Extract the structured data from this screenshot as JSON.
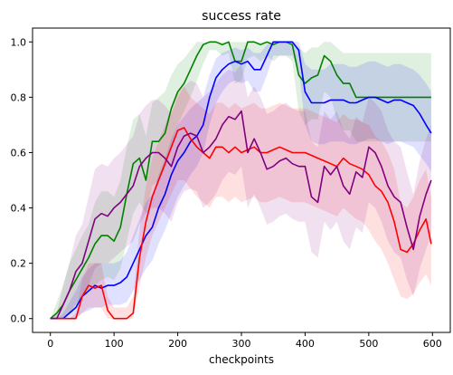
{
  "chart_data": {
    "type": "line",
    "title": "success rate",
    "xlabel": "checkpoints",
    "ylabel": "",
    "xlim": [
      -28,
      628
    ],
    "ylim": [
      -0.05,
      1.05
    ],
    "xticks": [
      0,
      100,
      200,
      300,
      400,
      500,
      600
    ],
    "yticks": [
      0.0,
      0.2,
      0.4,
      0.6,
      0.8,
      1.0
    ],
    "xtick_labels": [
      "0",
      "100",
      "200",
      "300",
      "400",
      "500",
      "600"
    ],
    "ytick_labels": [
      "0.0",
      "0.2",
      "0.4",
      "0.6",
      "0.8",
      "1.0"
    ],
    "grid": false,
    "series": [
      {
        "color": "#008000",
        "x": [
          0,
          10,
          20,
          30,
          40,
          50,
          60,
          70,
          80,
          90,
          100,
          110,
          120,
          130,
          140,
          150,
          160,
          170,
          180,
          190,
          200,
          210,
          220,
          230,
          240,
          250,
          260,
          270,
          280,
          290,
          300,
          310,
          320,
          330,
          340,
          350,
          360,
          370,
          380,
          390,
          400,
          410,
          420,
          430,
          440,
          450,
          460,
          470,
          480,
          490,
          500,
          510,
          520,
          530,
          540,
          550,
          560,
          570,
          580,
          590,
          598
        ],
        "y": [
          0.0,
          0.02,
          0.05,
          0.1,
          0.14,
          0.18,
          0.22,
          0.27,
          0.3,
          0.3,
          0.28,
          0.33,
          0.45,
          0.56,
          0.58,
          0.5,
          0.64,
          0.64,
          0.67,
          0.76,
          0.82,
          0.85,
          0.9,
          0.95,
          0.99,
          1.0,
          1.0,
          0.99,
          1.0,
          0.93,
          0.93,
          1.0,
          1.0,
          0.99,
          1.0,
          0.99,
          1.0,
          1.0,
          0.99,
          0.88,
          0.85,
          0.87,
          0.88,
          0.95,
          0.93,
          0.88,
          0.85,
          0.85,
          0.8,
          0.8,
          0.8,
          0.8,
          0.8,
          0.8,
          0.8,
          0.8,
          0.8,
          0.8,
          0.8,
          0.8,
          0.8
        ],
        "lower": [
          0.0,
          0.0,
          0.0,
          0.02,
          0.05,
          0.08,
          0.1,
          0.12,
          0.14,
          0.15,
          0.14,
          0.18,
          0.28,
          0.38,
          0.42,
          0.38,
          0.48,
          0.5,
          0.54,
          0.62,
          0.7,
          0.75,
          0.8,
          0.86,
          0.92,
          0.97,
          0.97,
          0.95,
          0.96,
          0.85,
          0.86,
          0.94,
          0.95,
          0.93,
          0.95,
          0.93,
          0.95,
          0.95,
          0.93,
          0.75,
          0.7,
          0.72,
          0.72,
          0.82,
          0.8,
          0.72,
          0.68,
          0.68,
          0.64,
          0.64,
          0.64,
          0.64,
          0.64,
          0.64,
          0.64,
          0.64,
          0.64,
          0.64,
          0.64,
          0.64,
          0.64
        ],
        "upper": [
          0.0,
          0.06,
          0.12,
          0.2,
          0.25,
          0.3,
          0.34,
          0.42,
          0.46,
          0.46,
          0.44,
          0.5,
          0.62,
          0.72,
          0.74,
          0.66,
          0.78,
          0.8,
          0.82,
          0.88,
          0.92,
          0.94,
          0.97,
          1.0,
          1.0,
          1.0,
          1.0,
          1.0,
          1.0,
          1.0,
          1.0,
          1.0,
          1.0,
          1.0,
          1.0,
          1.0,
          1.0,
          1.0,
          1.0,
          0.98,
          0.96,
          0.98,
          0.98,
          1.0,
          1.0,
          0.98,
          0.96,
          0.96,
          0.96,
          0.96,
          0.96,
          0.96,
          0.96,
          0.96,
          0.96,
          0.96,
          0.96,
          0.96,
          0.96,
          0.96,
          0.96
        ]
      },
      {
        "color": "#0000ff",
        "x": [
          0,
          10,
          20,
          30,
          40,
          50,
          60,
          70,
          80,
          90,
          100,
          110,
          120,
          130,
          140,
          150,
          160,
          170,
          180,
          190,
          200,
          210,
          220,
          230,
          240,
          250,
          260,
          270,
          280,
          290,
          300,
          310,
          320,
          330,
          340,
          350,
          360,
          370,
          380,
          390,
          400,
          410,
          420,
          430,
          440,
          450,
          460,
          470,
          480,
          490,
          500,
          510,
          520,
          530,
          540,
          550,
          560,
          570,
          580,
          590,
          598
        ],
        "y": [
          0.0,
          0.0,
          0.0,
          0.02,
          0.04,
          0.08,
          0.1,
          0.12,
          0.11,
          0.12,
          0.12,
          0.13,
          0.15,
          0.2,
          0.25,
          0.3,
          0.33,
          0.4,
          0.45,
          0.52,
          0.57,
          0.6,
          0.64,
          0.66,
          0.7,
          0.8,
          0.87,
          0.9,
          0.92,
          0.93,
          0.92,
          0.93,
          0.9,
          0.9,
          0.95,
          1.0,
          1.0,
          1.0,
          1.0,
          0.97,
          0.82,
          0.78,
          0.78,
          0.78,
          0.79,
          0.79,
          0.79,
          0.78,
          0.78,
          0.79,
          0.8,
          0.8,
          0.79,
          0.78,
          0.79,
          0.79,
          0.78,
          0.77,
          0.74,
          0.7,
          0.67
        ],
        "lower": [
          0.0,
          0.0,
          0.0,
          0.0,
          0.0,
          0.02,
          0.03,
          0.04,
          0.04,
          0.05,
          0.05,
          0.05,
          0.06,
          0.1,
          0.14,
          0.18,
          0.21,
          0.27,
          0.32,
          0.38,
          0.44,
          0.48,
          0.52,
          0.55,
          0.6,
          0.7,
          0.78,
          0.82,
          0.85,
          0.86,
          0.85,
          0.86,
          0.82,
          0.82,
          0.88,
          0.95,
          0.95,
          0.95,
          0.95,
          0.9,
          0.7,
          0.64,
          0.63,
          0.63,
          0.64,
          0.64,
          0.64,
          0.63,
          0.63,
          0.64,
          0.65,
          0.65,
          0.64,
          0.63,
          0.64,
          0.64,
          0.63,
          0.62,
          0.59,
          0.56,
          0.53
        ],
        "upper": [
          0.0,
          0.0,
          0.02,
          0.06,
          0.1,
          0.15,
          0.18,
          0.2,
          0.2,
          0.2,
          0.2,
          0.21,
          0.24,
          0.3,
          0.36,
          0.42,
          0.45,
          0.52,
          0.58,
          0.65,
          0.7,
          0.73,
          0.76,
          0.78,
          0.8,
          0.88,
          0.94,
          0.96,
          0.97,
          0.98,
          0.97,
          0.98,
          0.96,
          0.96,
          0.99,
          1.0,
          1.0,
          1.0,
          1.0,
          1.0,
          0.92,
          0.9,
          0.9,
          0.9,
          0.92,
          0.92,
          0.92,
          0.91,
          0.91,
          0.92,
          0.93,
          0.93,
          0.92,
          0.91,
          0.92,
          0.92,
          0.91,
          0.9,
          0.88,
          0.85,
          0.82
        ]
      },
      {
        "color": "#ff0000",
        "x": [
          0,
          10,
          20,
          30,
          40,
          50,
          60,
          70,
          80,
          90,
          100,
          110,
          120,
          130,
          140,
          150,
          160,
          170,
          180,
          190,
          200,
          210,
          220,
          230,
          240,
          250,
          260,
          270,
          280,
          290,
          300,
          310,
          320,
          330,
          340,
          350,
          360,
          370,
          380,
          390,
          400,
          410,
          420,
          430,
          440,
          450,
          460,
          470,
          480,
          490,
          500,
          510,
          520,
          530,
          540,
          550,
          560,
          570,
          580,
          590,
          598
        ],
        "y": [
          0.0,
          0.0,
          0.0,
          0.0,
          0.0,
          0.08,
          0.12,
          0.11,
          0.12,
          0.03,
          0.0,
          0.0,
          0.0,
          0.02,
          0.22,
          0.35,
          0.44,
          0.5,
          0.56,
          0.62,
          0.68,
          0.69,
          0.65,
          0.62,
          0.6,
          0.58,
          0.62,
          0.62,
          0.6,
          0.62,
          0.6,
          0.61,
          0.62,
          0.6,
          0.6,
          0.61,
          0.62,
          0.61,
          0.6,
          0.6,
          0.6,
          0.59,
          0.58,
          0.57,
          0.56,
          0.55,
          0.58,
          0.56,
          0.55,
          0.54,
          0.52,
          0.48,
          0.46,
          0.42,
          0.35,
          0.25,
          0.24,
          0.27,
          0.32,
          0.36,
          0.27
        ],
        "lower": [
          0.0,
          0.0,
          0.0,
          0.0,
          0.0,
          0.02,
          0.04,
          0.04,
          0.04,
          0.0,
          0.0,
          0.0,
          0.0,
          0.0,
          0.12,
          0.22,
          0.3,
          0.35,
          0.4,
          0.45,
          0.5,
          0.5,
          0.47,
          0.44,
          0.42,
          0.4,
          0.44,
          0.44,
          0.42,
          0.44,
          0.42,
          0.43,
          0.44,
          0.42,
          0.42,
          0.43,
          0.44,
          0.43,
          0.42,
          0.42,
          0.42,
          0.41,
          0.4,
          0.39,
          0.38,
          0.37,
          0.4,
          0.38,
          0.36,
          0.35,
          0.32,
          0.28,
          0.25,
          0.2,
          0.14,
          0.08,
          0.07,
          0.09,
          0.13,
          0.16,
          0.12
        ],
        "upper": [
          0.0,
          0.0,
          0.0,
          0.0,
          0.02,
          0.14,
          0.2,
          0.2,
          0.2,
          0.08,
          0.04,
          0.04,
          0.04,
          0.08,
          0.32,
          0.48,
          0.58,
          0.64,
          0.7,
          0.76,
          0.82,
          0.84,
          0.8,
          0.78,
          0.76,
          0.74,
          0.78,
          0.78,
          0.76,
          0.78,
          0.76,
          0.77,
          0.78,
          0.76,
          0.76,
          0.77,
          0.78,
          0.77,
          0.76,
          0.76,
          0.76,
          0.75,
          0.74,
          0.73,
          0.72,
          0.71,
          0.74,
          0.72,
          0.72,
          0.71,
          0.7,
          0.66,
          0.64,
          0.6,
          0.54,
          0.42,
          0.4,
          0.44,
          0.5,
          0.54,
          0.44
        ]
      },
      {
        "color": "#800080",
        "x": [
          0,
          10,
          20,
          30,
          40,
          50,
          60,
          70,
          80,
          90,
          100,
          110,
          120,
          130,
          140,
          150,
          160,
          170,
          180,
          190,
          200,
          210,
          220,
          230,
          240,
          250,
          260,
          270,
          280,
          290,
          300,
          310,
          320,
          330,
          340,
          350,
          360,
          370,
          380,
          390,
          400,
          410,
          420,
          430,
          440,
          450,
          460,
          470,
          480,
          490,
          500,
          510,
          520,
          530,
          540,
          550,
          560,
          570,
          580,
          590,
          598
        ],
        "y": [
          0.0,
          0.0,
          0.05,
          0.1,
          0.17,
          0.2,
          0.28,
          0.36,
          0.38,
          0.37,
          0.4,
          0.42,
          0.45,
          0.48,
          0.55,
          0.58,
          0.6,
          0.6,
          0.58,
          0.55,
          0.62,
          0.66,
          0.67,
          0.66,
          0.6,
          0.62,
          0.65,
          0.7,
          0.73,
          0.72,
          0.75,
          0.6,
          0.65,
          0.6,
          0.54,
          0.55,
          0.57,
          0.58,
          0.56,
          0.55,
          0.55,
          0.44,
          0.42,
          0.55,
          0.52,
          0.55,
          0.48,
          0.45,
          0.53,
          0.51,
          0.62,
          0.6,
          0.55,
          0.48,
          0.44,
          0.42,
          0.33,
          0.25,
          0.37,
          0.45,
          0.5
        ],
        "lower": [
          0.0,
          0.0,
          0.0,
          0.02,
          0.05,
          0.07,
          0.12,
          0.18,
          0.2,
          0.2,
          0.22,
          0.24,
          0.26,
          0.28,
          0.34,
          0.38,
          0.4,
          0.4,
          0.38,
          0.35,
          0.42,
          0.46,
          0.47,
          0.46,
          0.4,
          0.42,
          0.45,
          0.5,
          0.53,
          0.52,
          0.55,
          0.4,
          0.45,
          0.4,
          0.34,
          0.35,
          0.37,
          0.38,
          0.36,
          0.35,
          0.35,
          0.24,
          0.22,
          0.35,
          0.32,
          0.35,
          0.28,
          0.25,
          0.33,
          0.31,
          0.42,
          0.4,
          0.35,
          0.28,
          0.24,
          0.22,
          0.14,
          0.08,
          0.18,
          0.25,
          0.3
        ],
        "upper": [
          0.0,
          0.02,
          0.12,
          0.2,
          0.3,
          0.34,
          0.44,
          0.54,
          0.56,
          0.55,
          0.58,
          0.6,
          0.63,
          0.66,
          0.74,
          0.77,
          0.79,
          0.79,
          0.77,
          0.74,
          0.8,
          0.84,
          0.86,
          0.85,
          0.8,
          0.82,
          0.85,
          0.88,
          0.9,
          0.89,
          0.92,
          0.8,
          0.84,
          0.8,
          0.74,
          0.75,
          0.77,
          0.78,
          0.76,
          0.75,
          0.75,
          0.64,
          0.62,
          0.75,
          0.72,
          0.75,
          0.68,
          0.65,
          0.73,
          0.71,
          0.8,
          0.78,
          0.75,
          0.68,
          0.64,
          0.62,
          0.53,
          0.45,
          0.57,
          0.65,
          0.7
        ]
      }
    ]
  }
}
